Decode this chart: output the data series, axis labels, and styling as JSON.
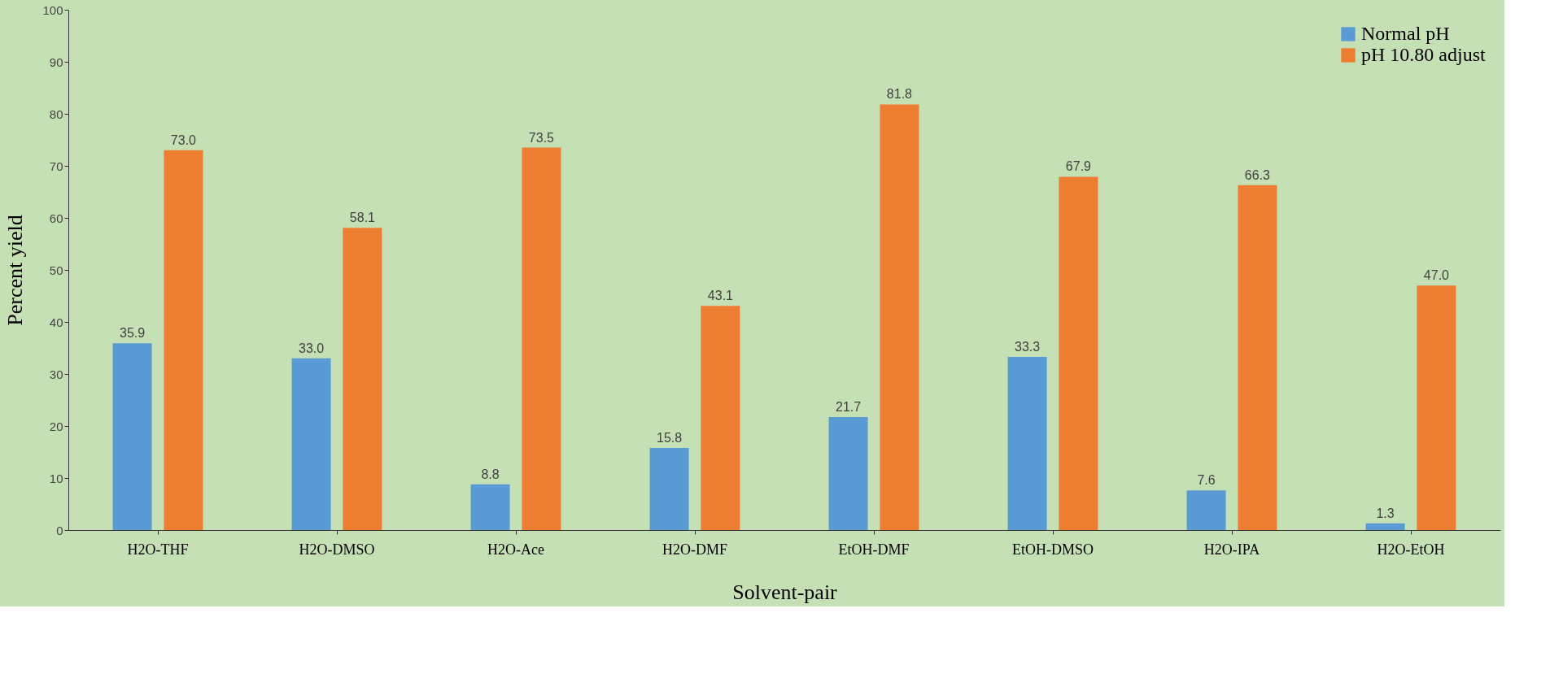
{
  "chart_data": {
    "type": "bar",
    "xlabel": "Solvent-pair",
    "ylabel": "Percent yield",
    "categories": [
      "H2O-THF",
      "H2O-DMSO",
      "H2O-Ace",
      "H2O-DMF",
      "EtOH-DMF",
      "EtOH-DMSO",
      "H2O-IPA",
      "H2O-EtOH"
    ],
    "series": [
      {
        "name": "Normal pH",
        "color": "#5b9bd5",
        "values": [
          35.9,
          33.0,
          8.8,
          15.8,
          21.7,
          33.3,
          7.6,
          1.3
        ]
      },
      {
        "name": "pH 10.80 adjust",
        "color": "#ed7d31",
        "values": [
          73.0,
          58.1,
          73.5,
          43.1,
          81.8,
          67.9,
          66.3,
          47.0
        ]
      }
    ],
    "ylim": [
      0,
      100
    ],
    "yticks": [
      0,
      10,
      20,
      30,
      40,
      50,
      60,
      70,
      80,
      90,
      100
    ],
    "value_labels": [
      [
        "35.9",
        "33.0",
        "8.8",
        "15.8",
        "21.7",
        "33.3",
        "7.6",
        "1.3"
      ],
      [
        "73.0",
        "58.1",
        "73.5",
        "43.1",
        "81.8",
        "67.9",
        "66.3",
        "47.0"
      ]
    ],
    "grid": false,
    "legend": "top right"
  }
}
